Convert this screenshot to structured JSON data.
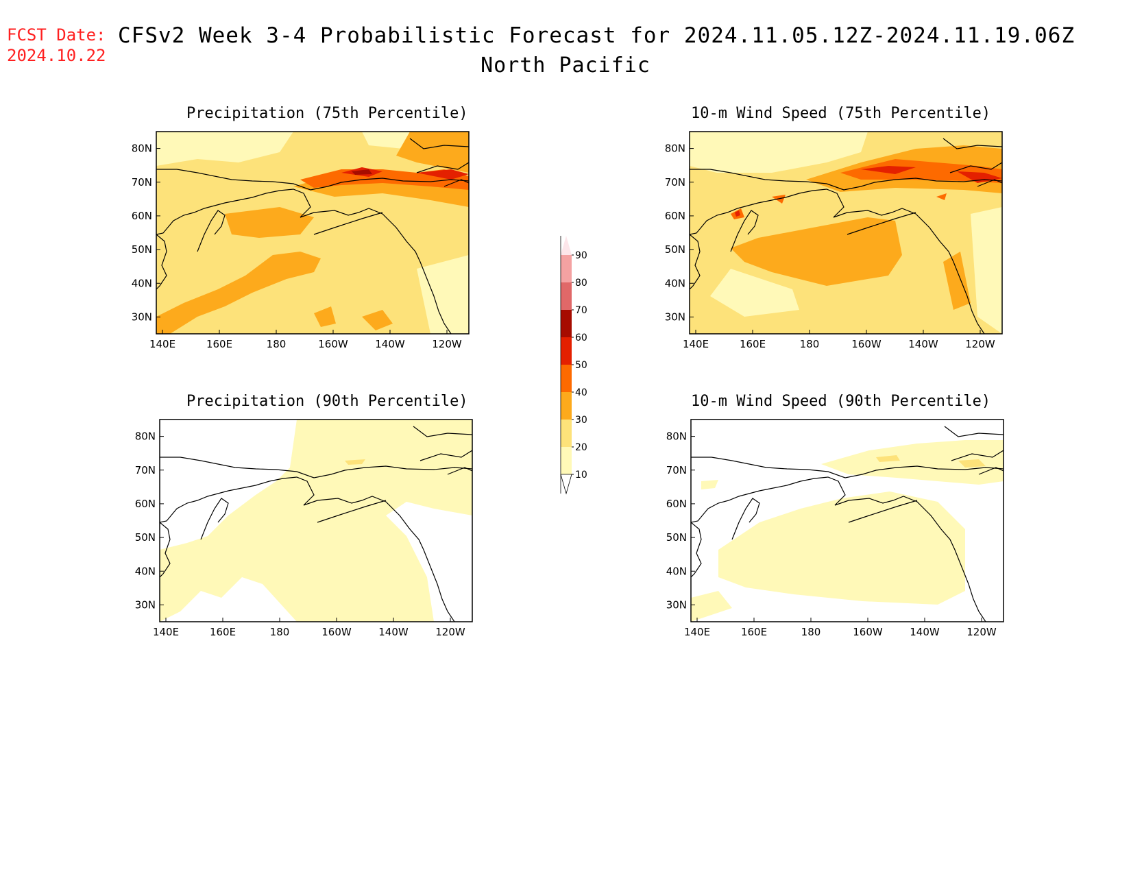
{
  "header": {
    "fcst_label": "FCST Date:",
    "fcst_date": "2024.10.22",
    "title": "CFSv2 Week 3-4 Probabilistic Forecast for 2024.11.05.12Z-2024.11.19.06Z",
    "region": "North Pacific"
  },
  "panels": [
    {
      "id": "precip75",
      "title": "Precipitation (75th Percentile)",
      "intensity": "high",
      "variable": "precipitation"
    },
    {
      "id": "wind75",
      "title": "10-m Wind Speed (75th Percentile)",
      "intensity": "high",
      "variable": "wind"
    },
    {
      "id": "precip90",
      "title": "Precipitation (90th Percentile)",
      "intensity": "low",
      "variable": "precipitation"
    },
    {
      "id": "wind90",
      "title": "10-m Wind Speed (90th Percentile)",
      "intensity": "low",
      "variable": "wind"
    }
  ],
  "axes": {
    "lat_labels": [
      "80N",
      "70N",
      "60N",
      "50N",
      "40N",
      "30N"
    ],
    "lon_labels": [
      "140E",
      "160E",
      "180",
      "160W",
      "140W",
      "120W"
    ]
  },
  "colorbar": {
    "levels": [
      "10",
      "20",
      "30",
      "40",
      "50",
      "60",
      "70",
      "80",
      "90"
    ],
    "colors": [
      "#fff9b8",
      "#fde27a",
      "#fdaa1c",
      "#fd6a00",
      "#e42000",
      "#a60c00",
      "#e06868",
      "#f4a2a2",
      "#fde6ea"
    ]
  },
  "palette": {
    "c10": "#fff9b8",
    "c20": "#fde27a",
    "c30": "#fdaa1c",
    "c40": "#fd6a00",
    "c50": "#e42000",
    "c60": "#a60c00"
  }
}
